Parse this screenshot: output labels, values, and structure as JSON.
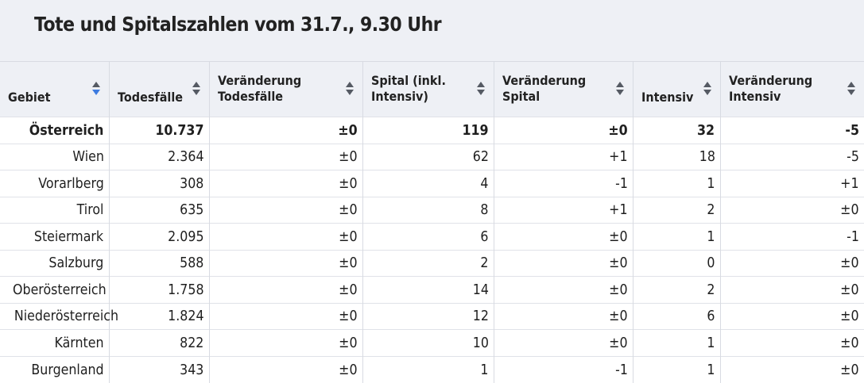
{
  "title": "Tote und Spitalszahlen vom 31.7., 9.30 Uhr",
  "columns": [
    {
      "line1": "Gebiet",
      "line2": ""
    },
    {
      "line1": "Todesfälle",
      "line2": ""
    },
    {
      "line1": "Veränderung",
      "line2": "Todesfälle"
    },
    {
      "line1": "Spital (inkl.",
      "line2": "Intensiv)"
    },
    {
      "line1": "Veränderung",
      "line2": "Spital"
    },
    {
      "line1": "Intensiv",
      "line2": ""
    },
    {
      "line1": "Veränderung",
      "line2": "Intensiv"
    }
  ],
  "rows": [
    [
      "Österreich",
      "10.737",
      "±0",
      "119",
      "±0",
      "32",
      "-5"
    ],
    [
      "Wien",
      "2.364",
      "±0",
      "62",
      "+1",
      "18",
      "-5"
    ],
    [
      "Vorarlberg",
      "308",
      "±0",
      "4",
      "-1",
      "1",
      "+1"
    ],
    [
      "Tirol",
      "635",
      "±0",
      "8",
      "+1",
      "2",
      "±0"
    ],
    [
      "Steiermark",
      "2.095",
      "±0",
      "6",
      "±0",
      "1",
      "-1"
    ],
    [
      "Salzburg",
      "588",
      "±0",
      "2",
      "±0",
      "0",
      "±0"
    ],
    [
      "Oberösterreich",
      "1.758",
      "±0",
      "14",
      "±0",
      "2",
      "±0"
    ],
    [
      "Niederösterreich",
      "1.824",
      "±0",
      "12",
      "±0",
      "6",
      "±0"
    ],
    [
      "Kärnten",
      "822",
      "±0",
      "10",
      "±0",
      "1",
      "±0"
    ],
    [
      "Burgenland",
      "343",
      "±0",
      "1",
      "-1",
      "1",
      "±0"
    ]
  ],
  "colors": {
    "header_bg": "#eef0f5",
    "sort_active": "#3d7be0",
    "sort_inactive": "#555a63",
    "grid": "#d8dbe2"
  }
}
